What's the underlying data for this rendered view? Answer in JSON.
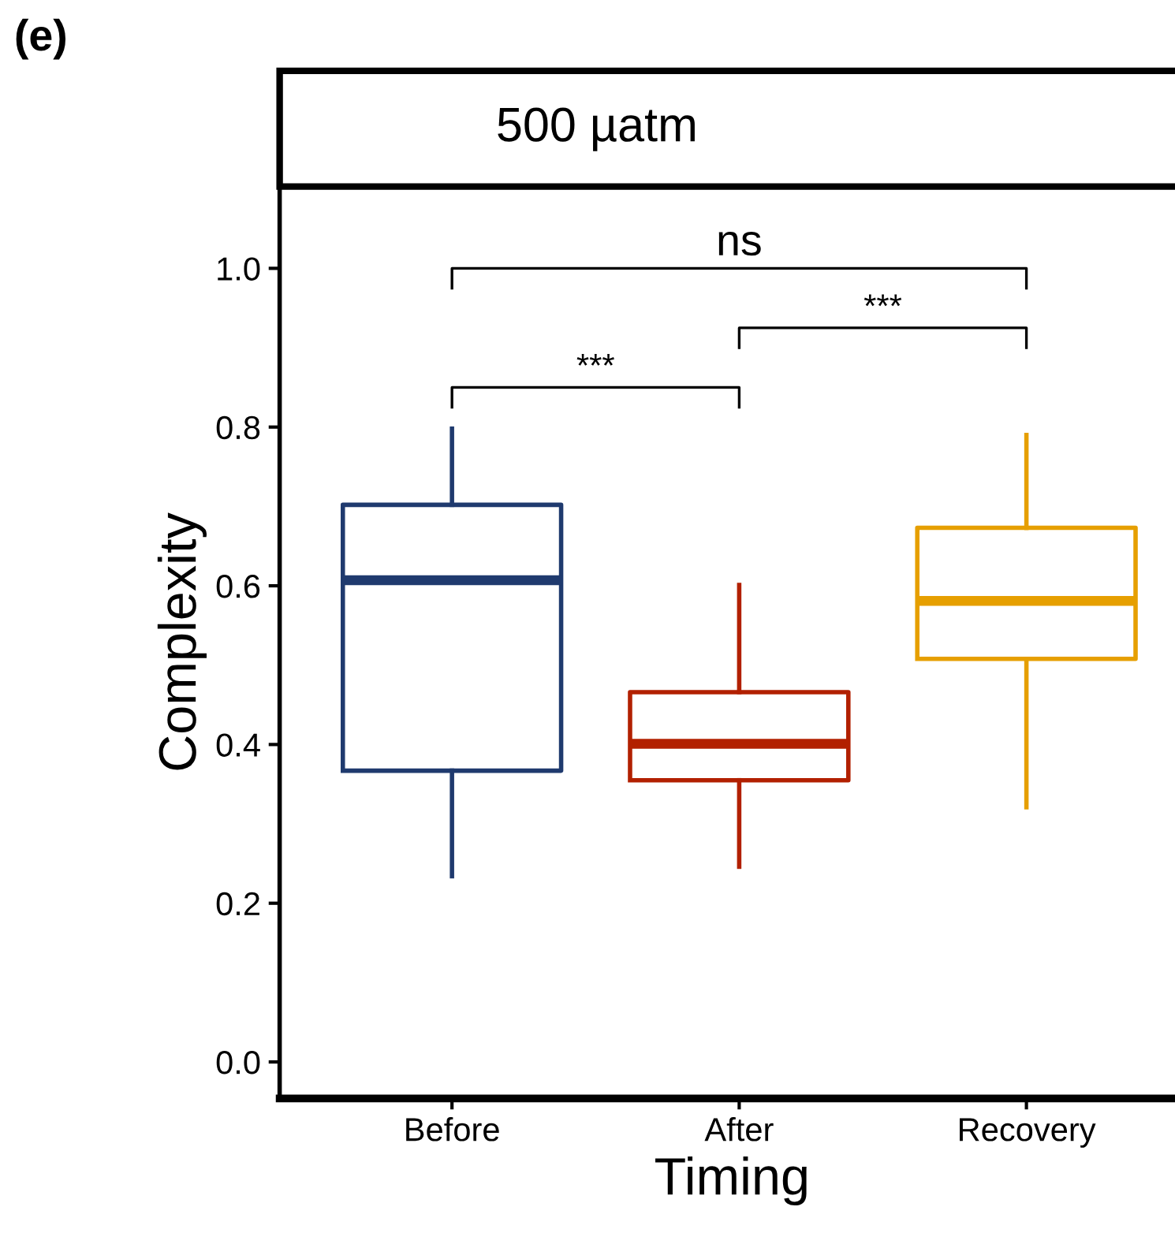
{
  "chart_data": {
    "type": "box",
    "title": "500 µatm",
    "xlabel": "Timing",
    "ylabel": "Complexity",
    "categories": [
      "Before",
      "After",
      "Recovery"
    ],
    "colors": [
      "#1f3a6e",
      "#b22000",
      "#e69f00"
    ],
    "boxes": [
      {
        "low": 0.234,
        "q1": 0.367,
        "median": 0.607,
        "q3": 0.702,
        "high": 0.798
      },
      {
        "low": 0.246,
        "q1": 0.355,
        "median": 0.401,
        "q3": 0.466,
        "high": 0.601
      },
      {
        "low": 0.321,
        "q1": 0.508,
        "median": 0.581,
        "q3": 0.673,
        "high": 0.79
      }
    ],
    "ylim": [
      -0.046,
      1.103
    ],
    "yticks": [
      {
        "value": 0,
        "label": "0.0"
      },
      {
        "value": 0.2,
        "label": "0.2"
      },
      {
        "value": 0.4,
        "label": "0.4"
      },
      {
        "value": 0.6,
        "label": "0.6"
      },
      {
        "value": 0.8,
        "label": "0.8"
      },
      {
        "value": 1.0,
        "label": "1.0"
      }
    ],
    "grid": false,
    "legend": false,
    "annotations": [
      "(e)",
      "ns",
      "***",
      "***"
    ]
  }
}
